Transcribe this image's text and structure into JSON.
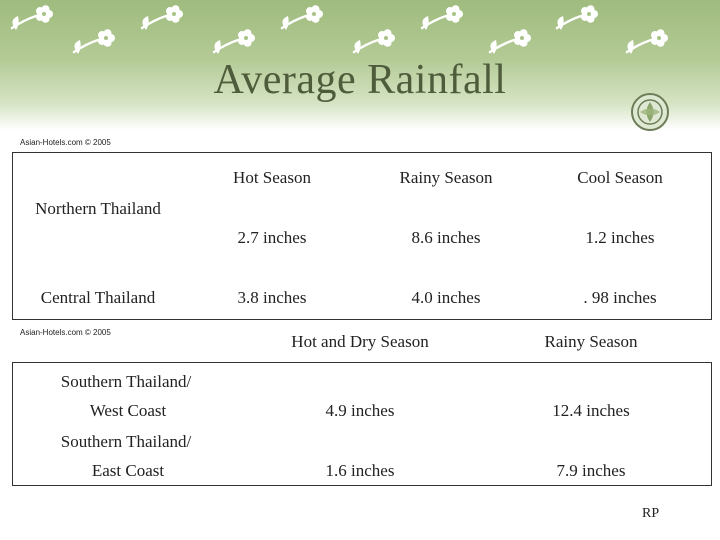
{
  "title": "Average Rainfall",
  "credit_top": "Asian-Hotels.com  © 2005",
  "credit_mid": "Asian-Hotels.com  © 2005",
  "table1": {
    "headers": [
      "Hot Season",
      "Rainy Season",
      "Cool Season"
    ],
    "rows": [
      {
        "region": "Northern Thailand",
        "values": [
          "2.7 inches",
          "8.6 inches",
          "1.2 inches"
        ]
      },
      {
        "region": "Central Thailand",
        "values": [
          "3.8 inches",
          "4.0 inches",
          ". 98 inches"
        ]
      }
    ]
  },
  "table2": {
    "headers": [
      "Hot and Dry Season",
      "Rainy Season"
    ],
    "rows": [
      {
        "region_line1": "Southern Thailand/",
        "region_line2": "West Coast",
        "values": [
          "4.9 inches",
          "12.4 inches"
        ]
      },
      {
        "region_line1": "Southern Thailand/",
        "region_line2": "East Coast",
        "values": [
          "1.6 inches",
          "7.9 inches"
        ]
      }
    ]
  },
  "footer_initials": "RP",
  "colors": {
    "banner_top": "#9fbb7e",
    "title": "#4e5c3c",
    "flower": "#ffffff"
  },
  "icons": [
    "flower-sprig-icon",
    "round-emblem-icon"
  ]
}
